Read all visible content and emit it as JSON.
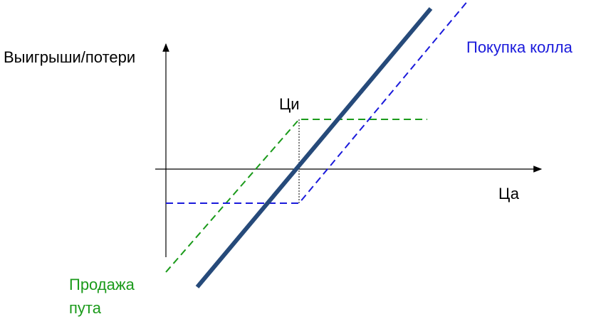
{
  "y_axis_label": "Выигрыши/потери",
  "x_axis_label": "Ца",
  "strike_label": "Ци",
  "call_label": "Покупка колла",
  "put_label": [
    "Продажа",
    "пута"
  ]
}
